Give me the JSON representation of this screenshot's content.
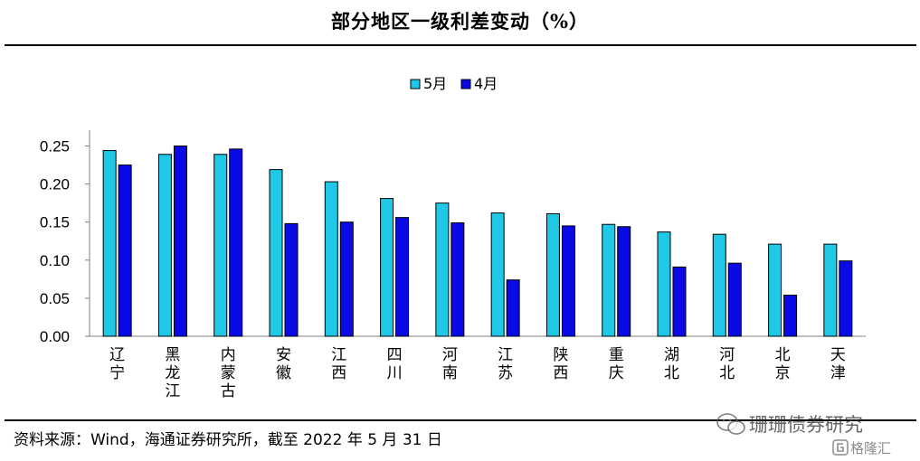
{
  "page": {
    "title": "部分地区一级利差变动（%）",
    "source": "资料来源：Wind，海通证券研究所，截至 2022 年 5 月 31 日",
    "watermark_name": "珊珊债券研究",
    "watermark_logo": "格隆汇"
  },
  "colors": {
    "may": "#1FC8E6",
    "april": "#0A0AE6",
    "bar_stroke": "#000000",
    "axis": "#7f7f7f"
  },
  "chart_data": {
    "type": "bar",
    "title": "部分地区一级利差变动（%）",
    "xlabel": "",
    "ylabel": "",
    "ylim": [
      0,
      0.25
    ],
    "yticks": [
      0.0,
      0.05,
      0.1,
      0.15,
      0.2,
      0.25
    ],
    "ytick_labels": [
      "0.00",
      "0.05",
      "0.10",
      "0.15",
      "0.20",
      "0.25"
    ],
    "legend_position": "top-center",
    "grid": false,
    "categories": [
      "辽宁",
      "黑龙江",
      "内蒙古",
      "安徽",
      "江西",
      "四川",
      "河南",
      "江苏",
      "陕西",
      "重庆",
      "湖北",
      "河北",
      "北京",
      "天津"
    ],
    "series": [
      {
        "name": "5月",
        "values": [
          0.244,
          0.239,
          0.239,
          0.219,
          0.203,
          0.181,
          0.175,
          0.162,
          0.161,
          0.147,
          0.137,
          0.134,
          0.121,
          0.121
        ]
      },
      {
        "name": "4月",
        "values": [
          0.225,
          0.25,
          0.246,
          0.148,
          0.15,
          0.156,
          0.149,
          0.074,
          0.145,
          0.144,
          0.091,
          0.096,
          0.054,
          0.099
        ]
      }
    ]
  }
}
